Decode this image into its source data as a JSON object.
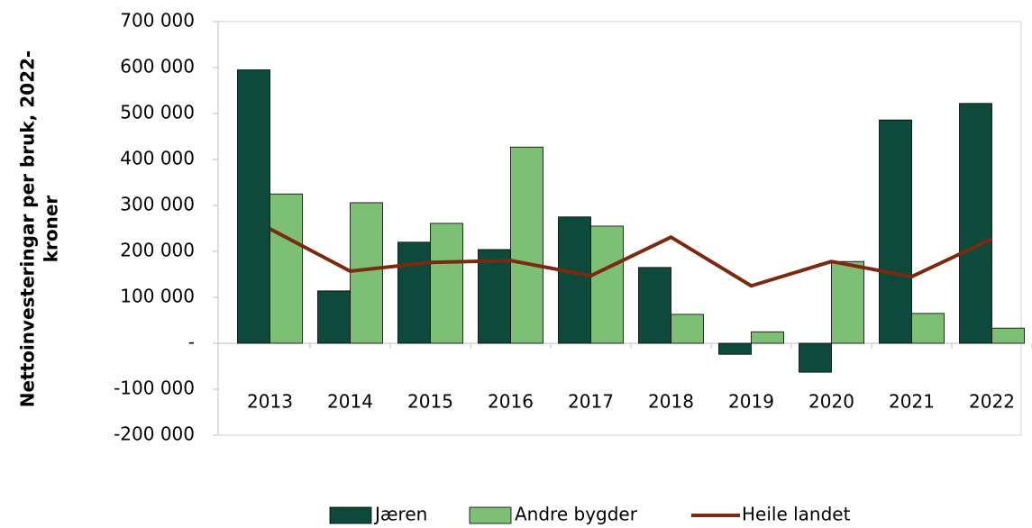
{
  "chart_data": {
    "type": "bar",
    "y_label": [
      "Nettoinvesteringar per bruk, 2022-",
      "kroner"
    ],
    "categories": [
      "2013",
      "2014",
      "2015",
      "2016",
      "2017",
      "2018",
      "2019",
      "2020",
      "2021",
      "2022"
    ],
    "series": [
      {
        "name": "Jæren",
        "type": "bar",
        "color": "#0e4a3c",
        "values": [
          595000,
          114000,
          220000,
          204000,
          275000,
          165000,
          -24000,
          -63000,
          486000,
          522000
        ]
      },
      {
        "name": "Andre bygder",
        "type": "bar",
        "color": "#7dbf74",
        "values": [
          325000,
          306000,
          261000,
          427000,
          255000,
          63000,
          25000,
          178000,
          65000,
          33000
        ]
      },
      {
        "name": "Heile landet",
        "type": "line",
        "color": "#7b2a0f",
        "values": [
          249000,
          157000,
          176000,
          180000,
          147000,
          231000,
          125000,
          178000,
          145000,
          227000
        ]
      }
    ],
    "ylim": [
      -200000,
      700000
    ],
    "yticks": [
      {
        "value": -200000,
        "label": "-200 000"
      },
      {
        "value": -100000,
        "label": "-100 000"
      },
      {
        "value": 0,
        "label": "-"
      },
      {
        "value": 100000,
        "label": "100 000"
      },
      {
        "value": 200000,
        "label": "200 000"
      },
      {
        "value": 300000,
        "label": "300 000"
      },
      {
        "value": 400000,
        "label": "400 000"
      },
      {
        "value": 500000,
        "label": "500 000"
      },
      {
        "value": 600000,
        "label": "600 000"
      },
      {
        "value": 700000,
        "label": "700 000"
      }
    ],
    "grid": false,
    "legend": "bottom"
  }
}
